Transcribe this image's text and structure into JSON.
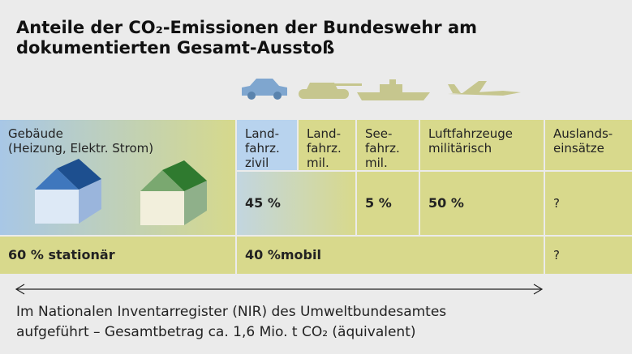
{
  "header": {
    "title_lines": [
      "Anteile der CO₂-Emissionen der Bundeswehr am",
      "dokumentierten Gesamt-Ausstoß"
    ]
  },
  "table": {
    "buildings": {
      "label_lines": [
        "Gebäude",
        "(Heizung, Elektr. Strom)"
      ]
    },
    "columns": [
      {
        "label_lines": [
          "Land-",
          "fahrz.",
          "zivil"
        ]
      },
      {
        "label_lines": [
          "Land-",
          "fahrz.",
          "mil."
        ]
      },
      {
        "label_lines": [
          "See-",
          "fahrz.",
          "mil."
        ]
      },
      {
        "label_lines": [
          "Luftfahrzeuge",
          "militärisch"
        ]
      },
      {
        "label_lines": [
          "Auslands-",
          "einsätze"
        ]
      }
    ],
    "shares": [
      "45 %",
      "5 %",
      "50 %",
      "?"
    ],
    "totals": [
      "60 % stationär",
      "40 %mobil",
      "?"
    ]
  },
  "footnote_lines": [
    "Im Nationalen Inventarregister (NIR) des Umweltbundesamtes",
    "aufgeführt – Gesamtbetrag ca. 1,6 Mio. t CO₂ (äquivalent)"
  ]
}
